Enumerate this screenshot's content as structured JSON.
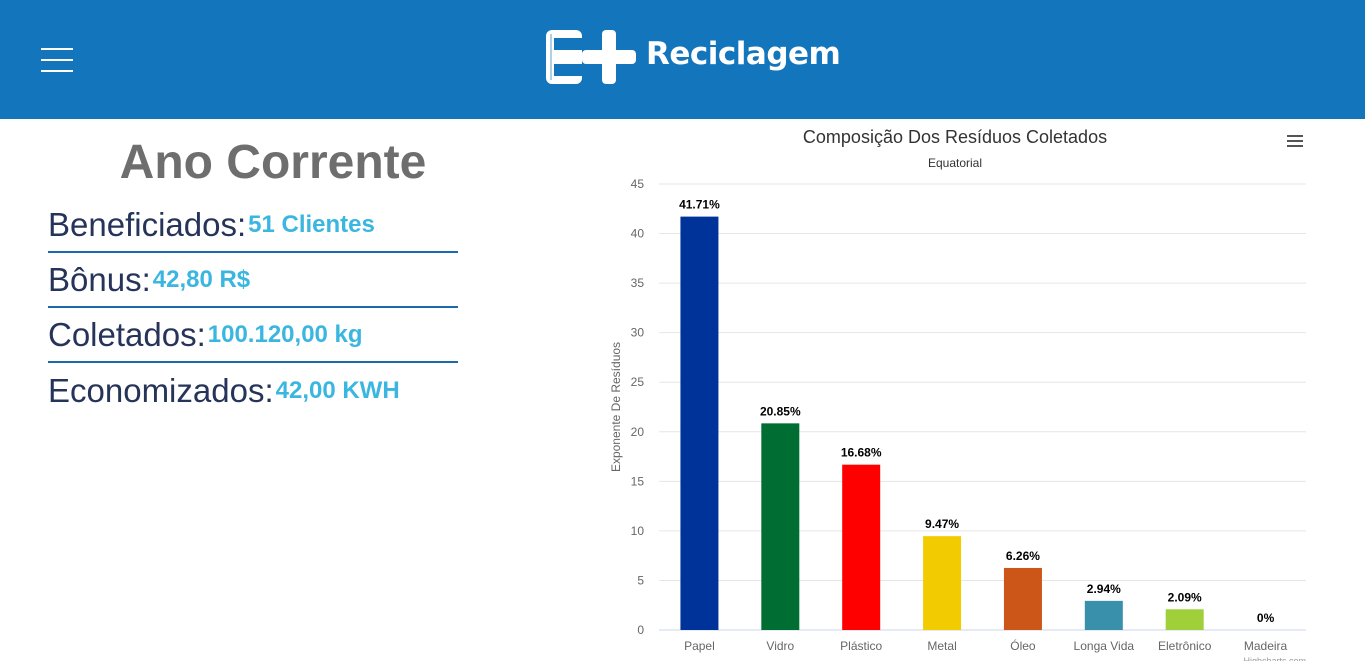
{
  "header": {
    "logo_text": "Reciclagem",
    "brand_color": "#1375bb"
  },
  "stats": {
    "title": "Ano Corrente",
    "items": [
      {
        "label": "Beneficiados:",
        "value": "51 Clientes"
      },
      {
        "label": "Bônus:",
        "value": "42,80 R$"
      },
      {
        "label": "Coletados:",
        "value": "100.120,00 kg"
      },
      {
        "label": "Economizados:",
        "value": "42,00 KWH"
      }
    ]
  },
  "chart_data": {
    "type": "bar",
    "title": "Composição Dos Resíduos Coletados",
    "subtitle": "Equatorial",
    "ylabel": "Exponente De Resíduos",
    "xlabel": "",
    "ylim": [
      0,
      45
    ],
    "yticks": [
      0,
      5,
      10,
      15,
      20,
      25,
      30,
      35,
      40,
      45
    ],
    "grid": true,
    "categories": [
      "Papel",
      "Vidro",
      "Plástico",
      "Metal",
      "Óleo",
      "Longa Vida",
      "Eletrônico",
      "Madeira"
    ],
    "values": [
      41.71,
      20.85,
      16.68,
      9.47,
      6.26,
      2.94,
      2.09,
      0
    ],
    "labels": [
      "41.71%",
      "20.85%",
      "16.68%",
      "9.47%",
      "6.26%",
      "2.94%",
      "2.09%",
      "0%"
    ],
    "colors": [
      "#003399",
      "#006e33",
      "#ff0000",
      "#f2cc00",
      "#cc5518",
      "#3890aa",
      "#9fd03a",
      "#7a4a2a"
    ],
    "credits": "Highcharts.com"
  }
}
